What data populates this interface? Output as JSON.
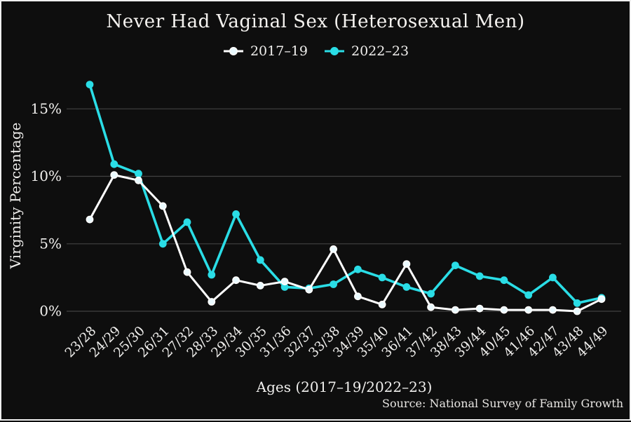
{
  "title": "Never Had Vaginal Sex (Heterosexual Men)",
  "source": "Source: National Survey of Family Growth",
  "colors": {
    "background": "#0e0e0e",
    "border": "#efefef",
    "grid": "#424242",
    "text": "#f0efed",
    "series_2017_19": "#ffffff",
    "series_2022_23": "#2adde6"
  },
  "chart_data": {
    "type": "line",
    "title": "Never Had Vaginal Sex (Heterosexual Men)",
    "xlabel": "Ages (2017–19/2022–23)",
    "ylabel": "Virginity Percentage",
    "legend_position": "top",
    "grid": true,
    "grid_color": "#424242",
    "text_color": "#f0efed",
    "ylim": [
      0,
      17.2
    ],
    "yticks": [
      0,
      5,
      10,
      15
    ],
    "ytick_labels": [
      "0%",
      "5%",
      "10%",
      "15%"
    ],
    "categories": [
      "23/28",
      "24/29",
      "25/30",
      "26/31",
      "27/32",
      "28/33",
      "29/34",
      "30/35",
      "31/36",
      "32/37",
      "33/38",
      "34/39",
      "35/40",
      "36/41",
      "37/42",
      "38/43",
      "39/44",
      "40/45",
      "41/46",
      "42/47",
      "43/48",
      "44/49"
    ],
    "series": [
      {
        "name": "2017–19",
        "color": "#ffffff",
        "marker_fill": "#eafaff",
        "line_width": 3,
        "values": [
          6.8,
          10.1,
          9.7,
          7.8,
          2.9,
          0.7,
          2.3,
          1.9,
          2.2,
          1.6,
          4.6,
          1.1,
          0.5,
          3.5,
          0.3,
          0.1,
          0.2,
          0.1,
          0.1,
          0.1,
          0.0,
          0.9
        ]
      },
      {
        "name": "2022–23",
        "color": "#2adde6",
        "marker_fill": "#2adde6",
        "line_width": 3.6,
        "values": [
          16.8,
          10.9,
          10.2,
          5.0,
          6.6,
          2.7,
          7.2,
          3.8,
          1.8,
          1.7,
          2.0,
          3.1,
          2.5,
          1.8,
          1.3,
          3.4,
          2.6,
          2.3,
          1.2,
          2.5,
          0.6,
          1.0
        ]
      }
    ]
  }
}
